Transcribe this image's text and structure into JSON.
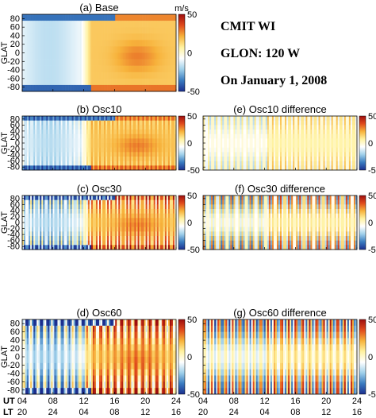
{
  "info": {
    "line1": "CMIT   WI",
    "line2": "GLON: 120 W",
    "line3": "On January 1, 2008"
  },
  "colorbar": {
    "unit": "m/s",
    "ticks": [
      "50",
      "0",
      "-50"
    ],
    "colors": [
      "#1b2f8f",
      "#3a7cc0",
      "#9fd0ea",
      "#ffffff",
      "#fff2a0",
      "#f7b23b",
      "#e04a1c",
      "#9e0e0e"
    ]
  },
  "axis": {
    "ylabel": "GLAT",
    "yticks": [
      "80",
      "60",
      "40",
      "20",
      "0",
      "-20",
      "-40",
      "-60",
      "-80"
    ],
    "ut_label": "UT",
    "lt_label": "LT",
    "ut_ticks": [
      "04",
      "08",
      "12",
      "16",
      "20",
      "24"
    ],
    "lt_ticks": [
      "20",
      "24",
      "04",
      "08",
      "12",
      "16"
    ]
  },
  "chart_data": [
    {
      "id": "a",
      "type": "heatmap",
      "title": "(a) Base",
      "xlabel": "UT / LT",
      "ylabel": "GLAT",
      "ylim": [
        -90,
        90
      ],
      "zlim": [
        -50,
        50
      ],
      "unit": "m/s"
    },
    {
      "id": "b",
      "type": "heatmap",
      "title": "(b) Osc10",
      "xlabel": "UT / LT",
      "ylabel": "GLAT",
      "ylim": [
        -90,
        90
      ],
      "zlim": [
        -50,
        50
      ],
      "unit": "m/s"
    },
    {
      "id": "e",
      "type": "heatmap",
      "title": "(e) Osc10 difference",
      "xlabel": "UT / LT",
      "ylim": [
        -90,
        90
      ],
      "zlim": [
        -50,
        50
      ],
      "unit": "m/s"
    },
    {
      "id": "c",
      "type": "heatmap",
      "title": "(c) Osc30",
      "xlabel": "UT / LT",
      "ylabel": "GLAT",
      "ylim": [
        -90,
        90
      ],
      "zlim": [
        -50,
        50
      ],
      "unit": "m/s"
    },
    {
      "id": "f",
      "type": "heatmap",
      "title": "(f) Osc30 difference",
      "xlabel": "UT / LT",
      "ylim": [
        -90,
        90
      ],
      "zlim": [
        -50,
        50
      ],
      "unit": "m/s"
    },
    {
      "id": "d",
      "type": "heatmap",
      "title": "(d) Osc60",
      "xlabel": "UT / LT",
      "ylabel": "GLAT",
      "ylim": [
        -90,
        90
      ],
      "zlim": [
        -50,
        50
      ],
      "unit": "m/s"
    },
    {
      "id": "g",
      "type": "heatmap",
      "title": "(g) Osc60 difference",
      "xlabel": "UT / LT",
      "ylim": [
        -90,
        90
      ],
      "zlim": [
        -50,
        50
      ],
      "unit": "m/s"
    }
  ]
}
